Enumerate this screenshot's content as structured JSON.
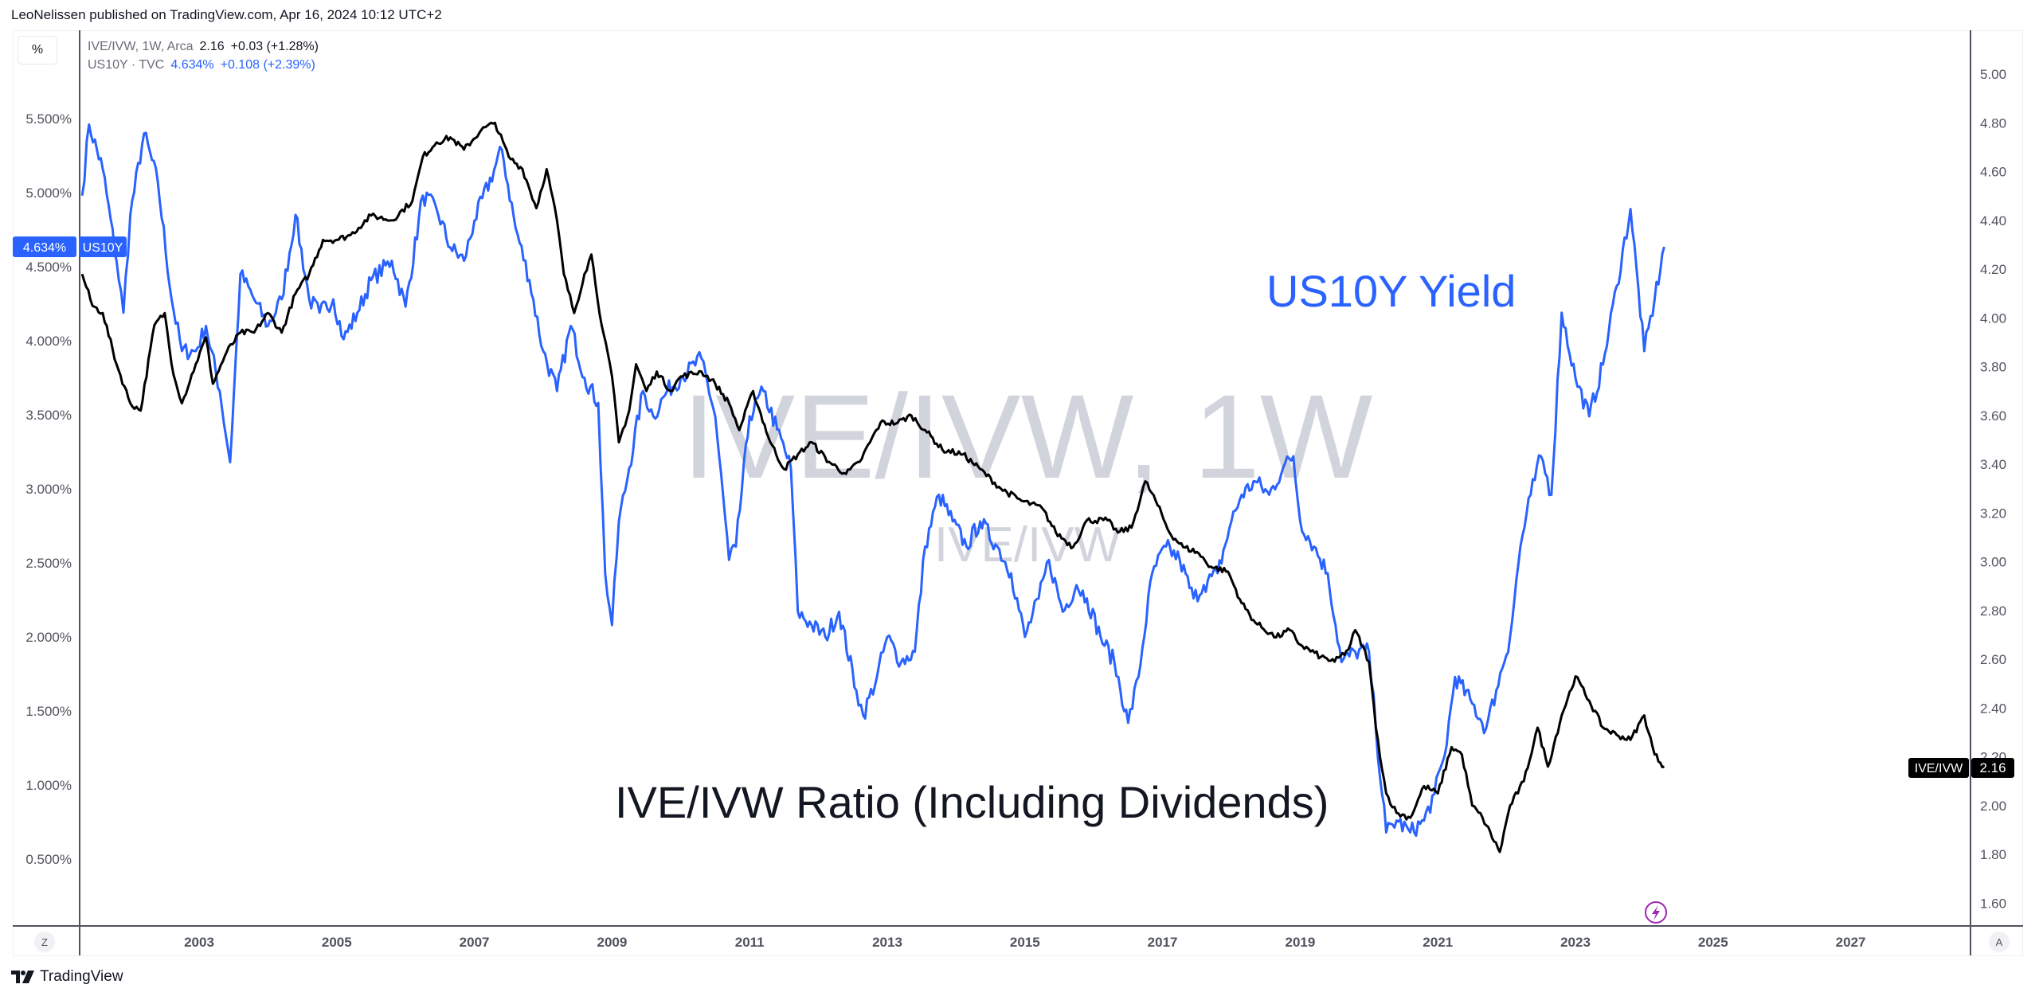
{
  "header": {
    "published": "LeoNelissen published on TradingView.com, Apr 16, 2024 10:12 UTC+2"
  },
  "toolbar": {
    "percent_label": "%",
    "z_label": "Z",
    "a_label": "A"
  },
  "legend": {
    "main": {
      "symbol": "IVE/IVW, 1W, Arca",
      "price": "2.16",
      "change": "+0.03 (+1.28%)"
    },
    "compare": {
      "symbol": "US10Y · TVC",
      "price": "4.634%",
      "change": "+0.108 (+2.39%)"
    }
  },
  "watermark": {
    "main": "IVE/IVW, 1W",
    "sub": "IVE/IVW"
  },
  "annotations": {
    "us10y": "US10Y Yield",
    "ratio": "IVE/IVW Ratio (Including Dividends)"
  },
  "price_labels": {
    "us10y_value": "4.634%",
    "us10y_name": "US10Y",
    "ratio_name": "IVE/IVW",
    "ratio_value": "2.16"
  },
  "footer": {
    "brand": "TradingView"
  },
  "colors": {
    "us10y": "#2962ff",
    "ratio": "#000000",
    "watermark": "#d1d4dc",
    "grid_axis": "#50535e",
    "lightning": "#9c27b0"
  },
  "chart_data": {
    "type": "line",
    "x_axis": {
      "ticks": [
        "2003",
        "2005",
        "2007",
        "2009",
        "2011",
        "2013",
        "2015",
        "2017",
        "2019",
        "2021",
        "2023",
        "2025",
        "2027"
      ],
      "range": [
        2001.3,
        2028.7
      ]
    },
    "y_left": {
      "ticks": [
        "5.500%",
        "5.000%",
        "4.500%",
        "4.000%",
        "3.500%",
        "3.000%",
        "2.500%",
        "2.000%",
        "1.500%",
        "1.000%",
        "0.500%"
      ],
      "unit": "%",
      "series": "US10Y"
    },
    "y_right": {
      "ticks": [
        "5.00",
        "4.80",
        "4.60",
        "4.40",
        "4.20",
        "4.00",
        "3.80",
        "3.60",
        "3.40",
        "3.20",
        "3.00",
        "2.80",
        "2.60",
        "2.40",
        "2.20",
        "2.00",
        "1.80",
        "1.60"
      ],
      "series": "IVE/IVW"
    },
    "grid": false,
    "series": [
      {
        "name": "US10Y",
        "axis": "left",
        "points": [
          [
            2001.3,
            4.98
          ],
          [
            2001.4,
            5.46
          ],
          [
            2001.6,
            5.16
          ],
          [
            2001.8,
            4.54
          ],
          [
            2001.9,
            4.19
          ],
          [
            2002.0,
            4.85
          ],
          [
            2002.2,
            5.4
          ],
          [
            2002.4,
            5.07
          ],
          [
            2002.6,
            4.28
          ],
          [
            2002.75,
            3.93
          ],
          [
            2002.95,
            3.93
          ],
          [
            2003.1,
            4.1
          ],
          [
            2003.3,
            3.66
          ],
          [
            2003.45,
            3.18
          ],
          [
            2003.6,
            4.45
          ],
          [
            2003.8,
            4.28
          ],
          [
            2004.0,
            4.1
          ],
          [
            2004.2,
            4.28
          ],
          [
            2004.4,
            4.85
          ],
          [
            2004.6,
            4.28
          ],
          [
            2004.75,
            4.19
          ],
          [
            2004.95,
            4.28
          ],
          [
            2005.1,
            4.01
          ],
          [
            2005.3,
            4.19
          ],
          [
            2005.5,
            4.41
          ],
          [
            2005.8,
            4.54
          ],
          [
            2006.0,
            4.23
          ],
          [
            2006.25,
            4.98
          ],
          [
            2006.45,
            4.89
          ],
          [
            2006.65,
            4.63
          ],
          [
            2006.85,
            4.54
          ],
          [
            2007.0,
            4.81
          ],
          [
            2007.4,
            5.29
          ],
          [
            2007.6,
            4.76
          ],
          [
            2007.8,
            4.41
          ],
          [
            2008.0,
            3.93
          ],
          [
            2008.2,
            3.66
          ],
          [
            2008.4,
            4.1
          ],
          [
            2008.6,
            3.75
          ],
          [
            2008.8,
            3.58
          ],
          [
            2008.9,
            2.43
          ],
          [
            2009.0,
            2.08
          ],
          [
            2009.1,
            2.78
          ],
          [
            2009.25,
            3.14
          ],
          [
            2009.45,
            3.66
          ],
          [
            2009.6,
            3.49
          ],
          [
            2009.8,
            3.66
          ],
          [
            2010.0,
            3.75
          ],
          [
            2010.3,
            3.88
          ],
          [
            2010.5,
            3.49
          ],
          [
            2010.7,
            2.52
          ],
          [
            2010.8,
            2.61
          ],
          [
            2011.0,
            3.49
          ],
          [
            2011.2,
            3.66
          ],
          [
            2011.4,
            3.4
          ],
          [
            2011.6,
            3.14
          ],
          [
            2011.7,
            2.17
          ],
          [
            2011.9,
            2.08
          ],
          [
            2012.1,
            2.0
          ],
          [
            2012.3,
            2.17
          ],
          [
            2012.55,
            1.64
          ],
          [
            2012.65,
            1.47
          ],
          [
            2012.85,
            1.73
          ],
          [
            2013.0,
            2.0
          ],
          [
            2013.2,
            1.83
          ],
          [
            2013.4,
            1.9
          ],
          [
            2013.55,
            2.61
          ],
          [
            2013.75,
            2.96
          ],
          [
            2013.95,
            2.78
          ],
          [
            2014.15,
            2.61
          ],
          [
            2014.35,
            2.78
          ],
          [
            2014.6,
            2.61
          ],
          [
            2014.8,
            2.43
          ],
          [
            2015.0,
            2.0
          ],
          [
            2015.2,
            2.26
          ],
          [
            2015.35,
            2.52
          ],
          [
            2015.55,
            2.17
          ],
          [
            2015.75,
            2.35
          ],
          [
            2015.9,
            2.26
          ],
          [
            2016.1,
            2.0
          ],
          [
            2016.3,
            1.83
          ],
          [
            2016.5,
            1.42
          ],
          [
            2016.65,
            1.73
          ],
          [
            2016.85,
            2.43
          ],
          [
            2017.05,
            2.61
          ],
          [
            2017.25,
            2.52
          ],
          [
            2017.45,
            2.26
          ],
          [
            2017.6,
            2.35
          ],
          [
            2017.8,
            2.43
          ],
          [
            2018.0,
            2.78
          ],
          [
            2018.15,
            2.96
          ],
          [
            2018.35,
            3.05
          ],
          [
            2018.55,
            2.96
          ],
          [
            2018.75,
            3.14
          ],
          [
            2018.9,
            3.22
          ],
          [
            2019.0,
            2.78
          ],
          [
            2019.2,
            2.61
          ],
          [
            2019.4,
            2.43
          ],
          [
            2019.6,
            1.83
          ],
          [
            2019.8,
            1.9
          ],
          [
            2020.0,
            1.9
          ],
          [
            2020.1,
            1.38
          ],
          [
            2020.25,
            0.68
          ],
          [
            2020.4,
            0.76
          ],
          [
            2020.6,
            0.68
          ],
          [
            2020.8,
            0.76
          ],
          [
            2020.95,
            0.94
          ],
          [
            2021.1,
            1.2
          ],
          [
            2021.25,
            1.73
          ],
          [
            2021.5,
            1.55
          ],
          [
            2021.7,
            1.38
          ],
          [
            2021.85,
            1.64
          ],
          [
            2022.05,
            2.0
          ],
          [
            2022.2,
            2.61
          ],
          [
            2022.35,
            2.96
          ],
          [
            2022.5,
            3.22
          ],
          [
            2022.65,
            2.96
          ],
          [
            2022.8,
            4.19
          ],
          [
            2023.0,
            3.75
          ],
          [
            2023.2,
            3.49
          ],
          [
            2023.4,
            3.84
          ],
          [
            2023.6,
            4.37
          ],
          [
            2023.8,
            4.89
          ],
          [
            2024.0,
            3.93
          ],
          [
            2024.15,
            4.28
          ],
          [
            2024.29,
            4.634
          ]
        ]
      },
      {
        "name": "IVE/IVW",
        "axis": "right",
        "points": [
          [
            2001.3,
            4.18
          ],
          [
            2001.45,
            4.05
          ],
          [
            2001.6,
            4.02
          ],
          [
            2001.8,
            3.81
          ],
          [
            2002.0,
            3.65
          ],
          [
            2002.15,
            3.62
          ],
          [
            2002.35,
            3.97
          ],
          [
            2002.5,
            4.02
          ],
          [
            2002.6,
            3.81
          ],
          [
            2002.75,
            3.65
          ],
          [
            2002.95,
            3.81
          ],
          [
            2003.1,
            3.92
          ],
          [
            2003.2,
            3.73
          ],
          [
            2003.4,
            3.86
          ],
          [
            2003.6,
            3.94
          ],
          [
            2003.8,
            3.94
          ],
          [
            2004.0,
            4.02
          ],
          [
            2004.2,
            3.94
          ],
          [
            2004.4,
            4.1
          ],
          [
            2004.6,
            4.18
          ],
          [
            2004.8,
            4.32
          ],
          [
            2005.0,
            4.32
          ],
          [
            2005.2,
            4.34
          ],
          [
            2005.5,
            4.42
          ],
          [
            2005.8,
            4.4
          ],
          [
            2006.1,
            4.48
          ],
          [
            2006.25,
            4.66
          ],
          [
            2006.45,
            4.72
          ],
          [
            2006.65,
            4.74
          ],
          [
            2006.85,
            4.69
          ],
          [
            2007.1,
            4.77
          ],
          [
            2007.3,
            4.8
          ],
          [
            2007.5,
            4.66
          ],
          [
            2007.7,
            4.61
          ],
          [
            2007.9,
            4.45
          ],
          [
            2008.05,
            4.61
          ],
          [
            2008.2,
            4.4
          ],
          [
            2008.3,
            4.18
          ],
          [
            2008.45,
            4.02
          ],
          [
            2008.6,
            4.18
          ],
          [
            2008.7,
            4.26
          ],
          [
            2008.85,
            3.97
          ],
          [
            2009.0,
            3.76
          ],
          [
            2009.1,
            3.49
          ],
          [
            2009.25,
            3.62
          ],
          [
            2009.35,
            3.81
          ],
          [
            2009.5,
            3.7
          ],
          [
            2009.65,
            3.78
          ],
          [
            2009.85,
            3.7
          ],
          [
            2010.0,
            3.76
          ],
          [
            2010.3,
            3.78
          ],
          [
            2010.5,
            3.73
          ],
          [
            2010.7,
            3.65
          ],
          [
            2010.85,
            3.54
          ],
          [
            2011.05,
            3.7
          ],
          [
            2011.3,
            3.49
          ],
          [
            2011.5,
            3.38
          ],
          [
            2011.7,
            3.44
          ],
          [
            2011.9,
            3.49
          ],
          [
            2012.15,
            3.41
          ],
          [
            2012.4,
            3.36
          ],
          [
            2012.6,
            3.41
          ],
          [
            2012.9,
            3.57
          ],
          [
            2013.15,
            3.57
          ],
          [
            2013.35,
            3.6
          ],
          [
            2013.55,
            3.54
          ],
          [
            2013.8,
            3.46
          ],
          [
            2014.1,
            3.44
          ],
          [
            2014.35,
            3.38
          ],
          [
            2014.65,
            3.3
          ],
          [
            2014.95,
            3.25
          ],
          [
            2015.25,
            3.22
          ],
          [
            2015.45,
            3.12
          ],
          [
            2015.7,
            3.06
          ],
          [
            2015.9,
            3.17
          ],
          [
            2016.2,
            3.17
          ],
          [
            2016.35,
            3.12
          ],
          [
            2016.55,
            3.14
          ],
          [
            2016.75,
            3.33
          ],
          [
            2016.9,
            3.25
          ],
          [
            2017.1,
            3.12
          ],
          [
            2017.3,
            3.06
          ],
          [
            2017.5,
            3.04
          ],
          [
            2017.7,
            2.98
          ],
          [
            2017.95,
            2.96
          ],
          [
            2018.15,
            2.83
          ],
          [
            2018.35,
            2.75
          ],
          [
            2018.65,
            2.69
          ],
          [
            2018.85,
            2.72
          ],
          [
            2019.0,
            2.66
          ],
          [
            2019.3,
            2.61
          ],
          [
            2019.5,
            2.59
          ],
          [
            2019.7,
            2.64
          ],
          [
            2019.8,
            2.72
          ],
          [
            2020.0,
            2.59
          ],
          [
            2020.1,
            2.32
          ],
          [
            2020.25,
            2.05
          ],
          [
            2020.4,
            1.97
          ],
          [
            2020.6,
            1.95
          ],
          [
            2020.8,
            2.08
          ],
          [
            2021.0,
            2.05
          ],
          [
            2021.2,
            2.24
          ],
          [
            2021.35,
            2.21
          ],
          [
            2021.5,
            2.0
          ],
          [
            2021.65,
            1.95
          ],
          [
            2021.9,
            1.81
          ],
          [
            2022.05,
            2.0
          ],
          [
            2022.25,
            2.1
          ],
          [
            2022.45,
            2.32
          ],
          [
            2022.6,
            2.16
          ],
          [
            2022.8,
            2.37
          ],
          [
            2023.0,
            2.53
          ],
          [
            2023.2,
            2.43
          ],
          [
            2023.4,
            2.32
          ],
          [
            2023.6,
            2.29
          ],
          [
            2023.8,
            2.27
          ],
          [
            2024.0,
            2.37
          ],
          [
            2024.15,
            2.21
          ],
          [
            2024.29,
            2.16
          ]
        ]
      }
    ]
  }
}
